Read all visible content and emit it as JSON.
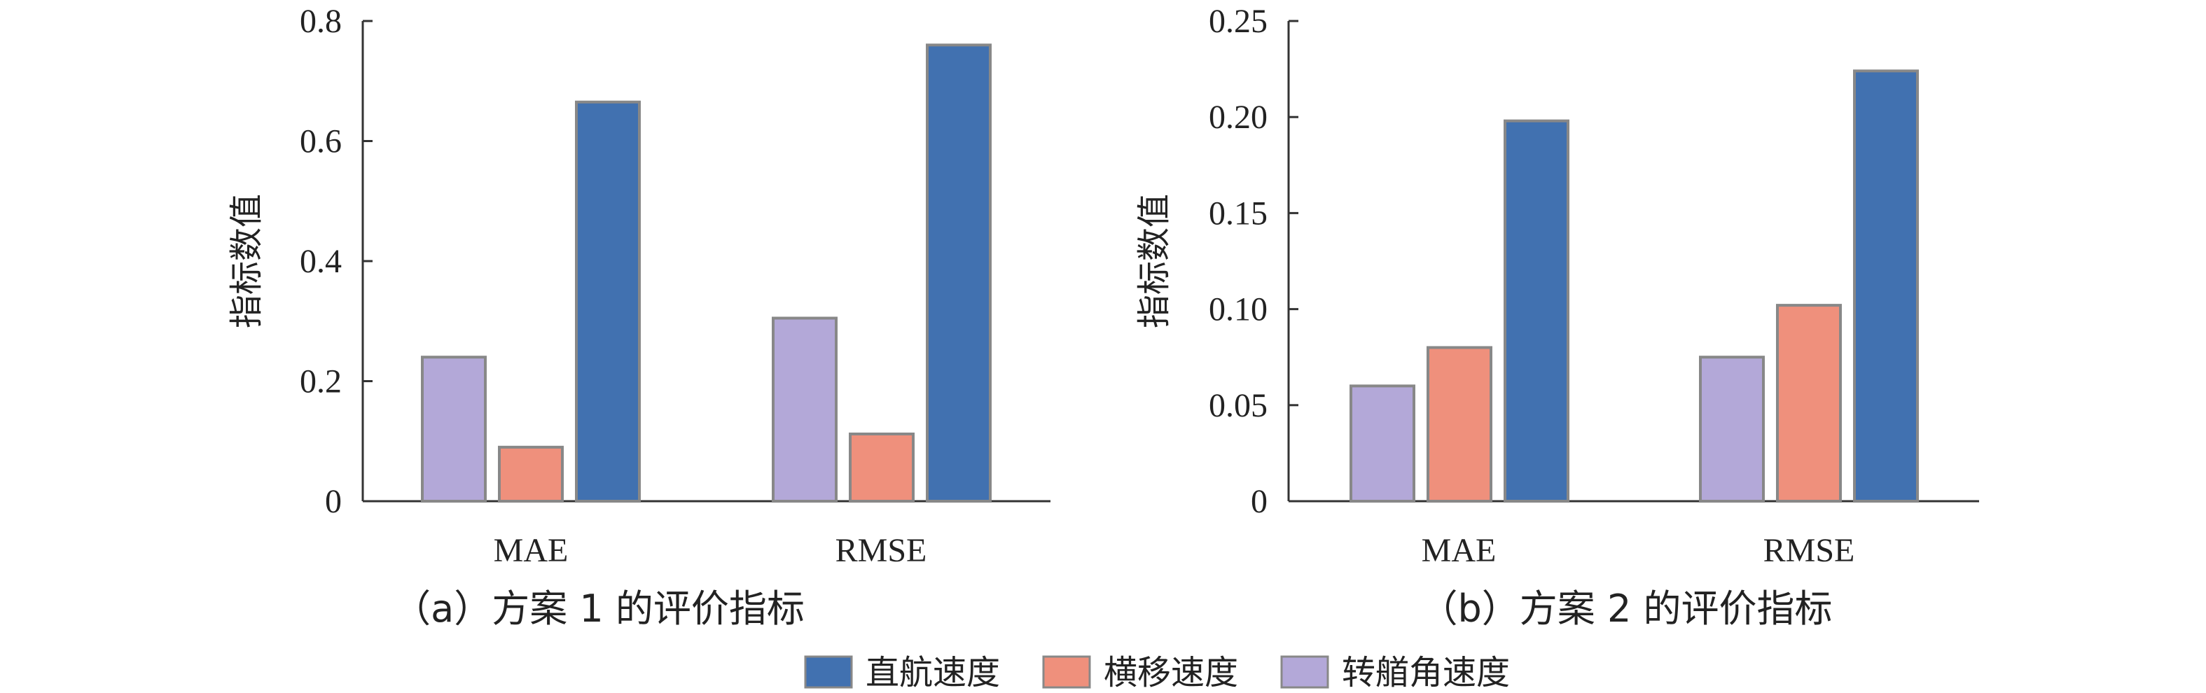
{
  "colors": {
    "bar_stroke": "#888888",
    "axis": "#333333",
    "text": "#222222"
  },
  "series": [
    {
      "name": "直航速度",
      "color": "#4171B0"
    },
    {
      "name": "横移速度",
      "color": "#EF907C"
    },
    {
      "name": "转艏角速度",
      "color": "#B3A8D8"
    }
  ],
  "legend": {
    "items": [
      {
        "label": "直航速度",
        "color": "#4171B0"
      },
      {
        "label": "横移速度",
        "color": "#EF907C"
      },
      {
        "label": "转艏角速度",
        "color": "#B3A8D8"
      }
    ]
  },
  "chart_data": [
    {
      "type": "bar",
      "caption": "（a）方案 1 的评价指标",
      "ylabel": "指标数值",
      "xlabel": "",
      "ylim": [
        0,
        0.8
      ],
      "yticks": [
        0,
        0.2,
        0.4,
        0.6,
        0.8
      ],
      "ytick_labels": [
        "0",
        "0.2",
        "0.4",
        "0.6",
        "0.8"
      ],
      "categories": [
        "MAE",
        "RMSE"
      ],
      "bar_order": [
        "转艏角速度",
        "横移速度",
        "直航速度"
      ],
      "series": [
        {
          "name": "转艏角速度",
          "values": [
            0.24,
            0.305
          ]
        },
        {
          "name": "横移速度",
          "values": [
            0.09,
            0.112
          ]
        },
        {
          "name": "直航速度",
          "values": [
            0.665,
            0.76
          ]
        }
      ]
    },
    {
      "type": "bar",
      "caption": "（b）方案 2 的评价指标",
      "ylabel": "指标数值",
      "xlabel": "",
      "ylim": [
        0,
        0.25
      ],
      "yticks": [
        0,
        0.05,
        0.1,
        0.15,
        0.2,
        0.25
      ],
      "ytick_labels": [
        "0",
        "0.05",
        "0.10",
        "0.15",
        "0.20",
        "0.25"
      ],
      "categories": [
        "MAE",
        "RMSE"
      ],
      "bar_order": [
        "转艏角速度",
        "横移速度",
        "直航速度"
      ],
      "series": [
        {
          "name": "转艏角速度",
          "values": [
            0.06,
            0.075
          ]
        },
        {
          "name": "横移速度",
          "values": [
            0.08,
            0.102
          ]
        },
        {
          "name": "直航速度",
          "values": [
            0.198,
            0.224
          ]
        }
      ]
    }
  ]
}
